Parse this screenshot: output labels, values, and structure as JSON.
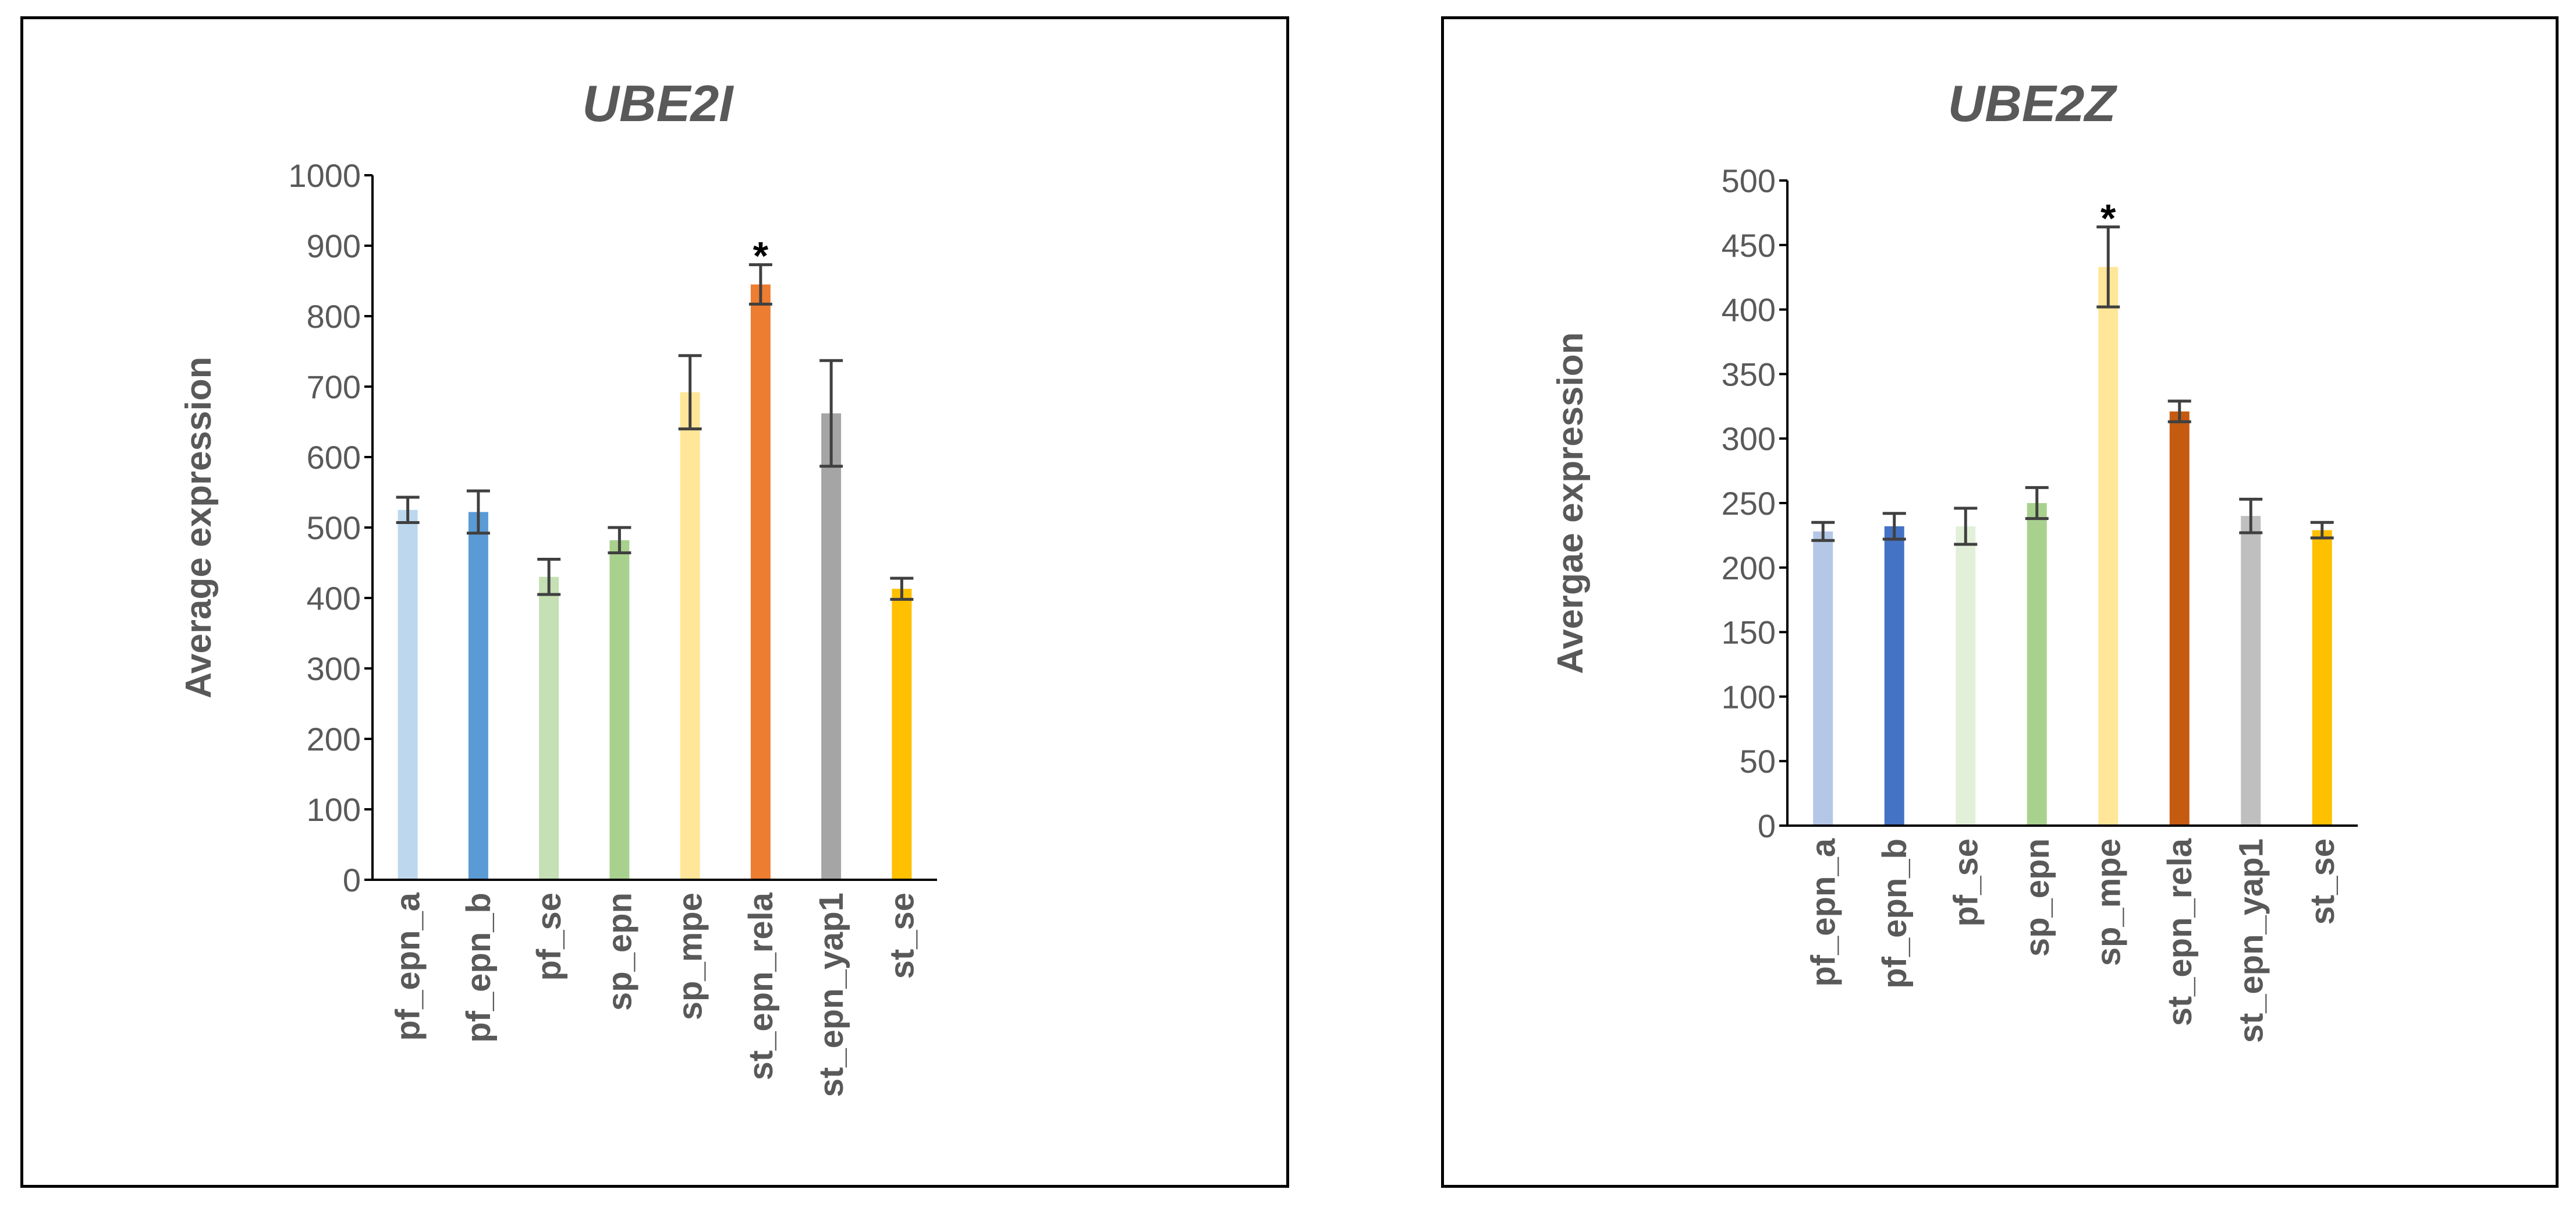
{
  "chart_data": [
    {
      "type": "bar",
      "title": "UBE2I",
      "xlabel": "",
      "ylabel": "Average expression",
      "ylim": [
        0,
        1000
      ],
      "yticks": [
        0,
        100,
        200,
        300,
        400,
        500,
        600,
        700,
        800,
        900,
        1000
      ],
      "categories": [
        "pf_epn_a",
        "pf_epn_b",
        "pf_se",
        "sp_epn",
        "sp_mpe",
        "st_epn_rela",
        "st_epn_yap1",
        "st_se"
      ],
      "values": [
        525,
        522,
        430,
        482,
        692,
        845,
        662,
        413
      ],
      "errors": [
        18,
        30,
        25,
        18,
        52,
        28,
        75,
        15
      ],
      "colors": [
        "#BDD7EE",
        "#5B9BD5",
        "#C5E0B4",
        "#A9D18E",
        "#FFE699",
        "#ED7D31",
        "#A5A5A5",
        "#FFC000"
      ],
      "annotations": [
        {
          "category": "st_epn_rela",
          "text": "*"
        }
      ]
    },
    {
      "type": "bar",
      "title": "UBE2Z",
      "xlabel": "",
      "ylabel": "Avergae expression",
      "ylim": [
        0,
        500
      ],
      "yticks": [
        0,
        50,
        100,
        150,
        200,
        250,
        300,
        350,
        400,
        450,
        500
      ],
      "categories": [
        "pf_epn_a",
        "pf_epn_b",
        "pf_se",
        "sp_epn",
        "sp_mpe",
        "st_epn_rela",
        "st_epn_yap1",
        "st_se"
      ],
      "values": [
        228,
        232,
        232,
        250,
        433,
        321,
        240,
        229
      ],
      "errors": [
        7,
        10,
        14,
        12,
        31,
        8,
        13,
        6
      ],
      "colors": [
        "#B4C7E7",
        "#4472C4",
        "#E2F0D9",
        "#A9D18E",
        "#FFE699",
        "#C55A11",
        "#BFBFBF",
        "#FFC000"
      ],
      "annotations": [
        {
          "category": "sp_mpe",
          "text": "*"
        }
      ]
    }
  ]
}
